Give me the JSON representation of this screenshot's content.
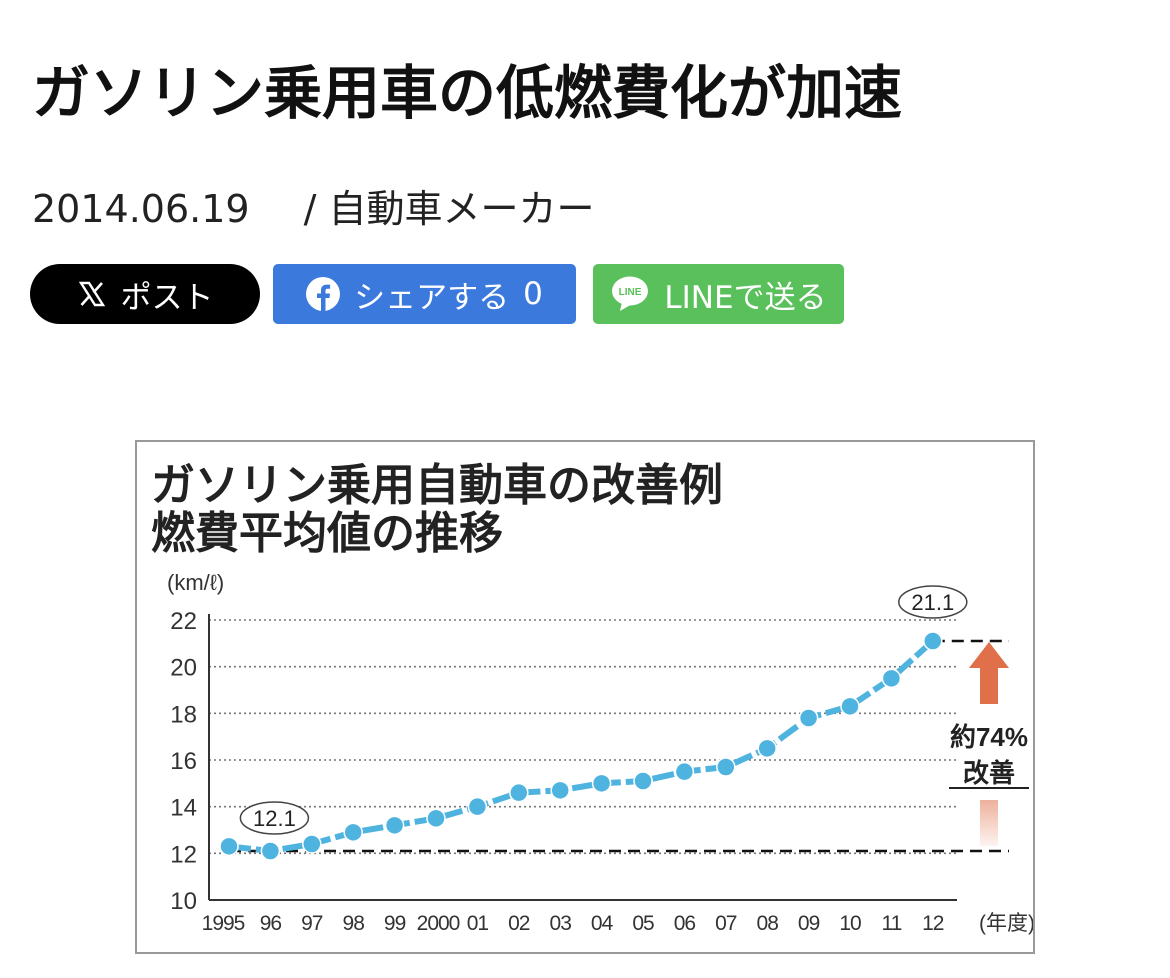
{
  "article": {
    "title": "ガソリン乗用車の低燃費化が加速",
    "date": "2014.06.19",
    "category": "/ 自動車メーカー"
  },
  "share": {
    "x_label": "ポスト",
    "facebook_label": "シェアする",
    "facebook_count": "0",
    "line_label": "LINEで送る",
    "line_icon_text": "LINE"
  },
  "colors": {
    "x": "#000000",
    "facebook": "#3b79dd",
    "line": "#5ac05c",
    "series": "#4fb3e0",
    "arrow": "#e0704a"
  },
  "chart_data": {
    "type": "line",
    "title_line1": "ガソリン乗用自動車の改善例",
    "title_line2": "燃費平均値の推移",
    "ylabel": "(km/ℓ)",
    "xlabel": "(年度)",
    "ylim": [
      10,
      22
    ],
    "yticks": [
      10,
      12,
      14,
      16,
      18,
      20,
      22
    ],
    "categories": [
      "1995",
      "96",
      "97",
      "98",
      "99",
      "2000",
      "01",
      "02",
      "03",
      "04",
      "05",
      "06",
      "07",
      "08",
      "09",
      "10",
      "11",
      "12"
    ],
    "values": [
      12.3,
      12.1,
      12.4,
      12.9,
      13.2,
      13.5,
      14.0,
      14.6,
      14.7,
      15.0,
      15.1,
      15.5,
      15.7,
      16.5,
      17.8,
      18.3,
      19.5,
      21.1
    ],
    "grid": true,
    "start_label": "12.1",
    "end_label": "21.1",
    "reference_low": 12.1,
    "reference_high": 21.1,
    "annotation_line1": "約74%",
    "annotation_line2": "改善"
  }
}
